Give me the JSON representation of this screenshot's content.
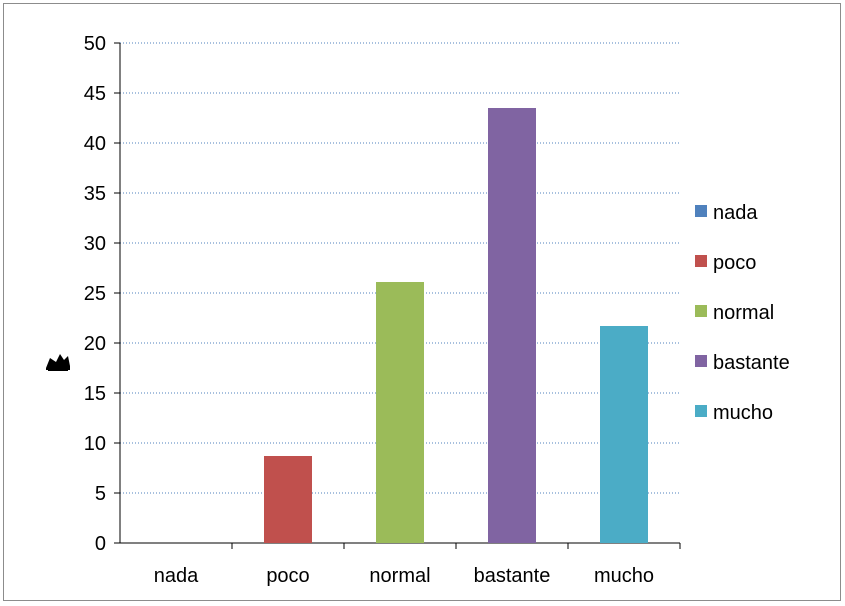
{
  "chart_data": {
    "type": "bar",
    "categories": [
      "nada",
      "poco",
      "normal",
      "bastante",
      "mucho"
    ],
    "values": [
      0,
      8.7,
      26.1,
      43.5,
      21.7
    ],
    "colors": [
      "#4f81bd",
      "#c0504d",
      "#9bbb59",
      "#8064a2",
      "#4bacc6"
    ],
    "legend": [
      "nada",
      "poco",
      " normal",
      "bastante",
      "mucho"
    ],
    "legend_position": "right",
    "ylim": [
      0,
      50
    ],
    "yticks": [
      0,
      5,
      10,
      15,
      20,
      25,
      30,
      35,
      40,
      45,
      50
    ],
    "grid": "dotted horizontal",
    "ylabel_icon": "sack-icon"
  }
}
